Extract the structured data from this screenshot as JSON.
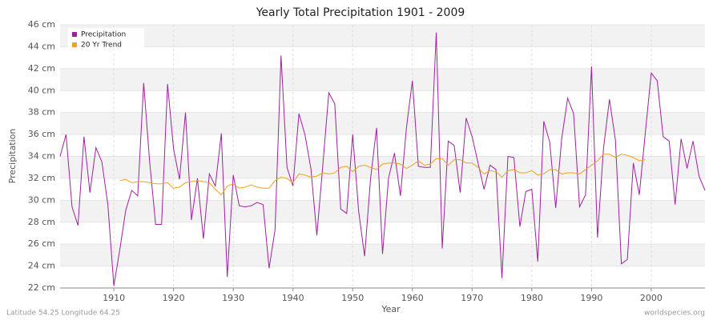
{
  "chart_data": {
    "type": "line",
    "title": "Yearly Total Precipitation 1901 - 2009",
    "x_label": "Year",
    "y_label": "Precipitation",
    "footer_left": "Latitude 54.25 Longitude 64.25",
    "footer_right": "worldspecies.org",
    "x": [
      1901,
      1902,
      1903,
      1904,
      1905,
      1906,
      1907,
      1908,
      1909,
      1910,
      1911,
      1912,
      1913,
      1914,
      1915,
      1916,
      1917,
      1918,
      1919,
      1920,
      1921,
      1922,
      1923,
      1924,
      1925,
      1926,
      1927,
      1928,
      1929,
      1930,
      1931,
      1932,
      1933,
      1934,
      1935,
      1936,
      1937,
      1938,
      1939,
      1940,
      1941,
      1942,
      1943,
      1944,
      1945,
      1946,
      1947,
      1948,
      1949,
      1950,
      1951,
      1952,
      1953,
      1954,
      1955,
      1956,
      1957,
      1958,
      1959,
      1960,
      1961,
      1962,
      1963,
      1964,
      1965,
      1966,
      1967,
      1968,
      1969,
      1970,
      1971,
      1972,
      1973,
      1974,
      1975,
      1976,
      1977,
      1978,
      1979,
      1980,
      1981,
      1982,
      1983,
      1984,
      1985,
      1986,
      1987,
      1988,
      1989,
      1990,
      1991,
      1992,
      1993,
      1994,
      1995,
      1996,
      1997,
      1998,
      1999,
      2000,
      2001,
      2002,
      2003,
      2004,
      2005,
      2006,
      2007,
      2008,
      2009
    ],
    "series": [
      {
        "name": "Precipitation",
        "color": "#a020a0",
        "values": [
          34.0,
          36.0,
          29.4,
          27.7,
          35.8,
          30.7,
          34.8,
          33.5,
          29.6,
          22.2,
          25.5,
          29.1,
          30.9,
          30.4,
          40.7,
          33.5,
          27.8,
          27.8,
          40.6,
          34.7,
          31.9,
          38.0,
          28.2,
          32.0,
          26.5,
          32.4,
          31.3,
          36.1,
          23.0,
          32.3,
          29.5,
          29.4,
          29.5,
          29.8,
          29.6,
          23.8,
          27.3,
          43.2,
          33.0,
          31.3,
          37.9,
          36.0,
          32.9,
          26.8,
          33.2,
          39.8,
          38.8,
          29.2,
          28.8,
          36.0,
          29.0,
          24.9,
          32.0,
          36.6,
          25.1,
          32.0,
          34.3,
          30.4,
          36.6,
          40.9,
          33.1,
          33.0,
          33.0,
          45.3,
          25.6,
          35.4,
          35.0,
          30.7,
          37.5,
          35.8,
          33.4,
          31.0,
          33.2,
          32.8,
          22.9,
          34.0,
          33.9,
          27.6,
          30.8,
          31.0,
          24.4,
          37.2,
          35.3,
          29.3,
          35.6,
          39.3,
          37.9,
          29.4,
          30.5,
          42.2,
          26.6,
          34.7,
          39.2,
          35.5,
          24.2,
          24.6,
          33.4,
          30.5,
          36.1,
          41.6,
          40.9,
          35.8,
          35.4,
          29.6,
          35.6,
          32.9,
          35.4,
          32.2,
          30.9
        ]
      },
      {
        "name": "20 Yr Trend",
        "color": "#f0a020",
        "values": [
          null,
          null,
          null,
          null,
          null,
          null,
          null,
          null,
          null,
          null,
          31.8,
          31.9,
          31.6,
          31.7,
          31.7,
          31.6,
          31.5,
          31.5,
          31.6,
          31.1,
          31.2,
          31.6,
          31.7,
          31.8,
          31.7,
          31.6,
          31.0,
          30.5,
          31.3,
          31.5,
          31.1,
          31.2,
          31.4,
          31.2,
          31.1,
          31.1,
          31.8,
          32.1,
          32.0,
          31.6,
          32.4,
          32.3,
          32.1,
          32.2,
          32.5,
          32.4,
          32.5,
          33.0,
          33.1,
          32.6,
          33.1,
          33.2,
          33.0,
          32.8,
          33.3,
          33.4,
          33.4,
          33.3,
          32.9,
          33.2,
          33.6,
          33.2,
          33.3,
          33.8,
          33.8,
          33.2,
          33.7,
          33.7,
          33.4,
          33.4,
          33.0,
          32.4,
          32.7,
          32.6,
          32.1,
          32.7,
          32.8,
          32.5,
          32.5,
          32.7,
          32.3,
          32.4,
          32.8,
          32.8,
          32.4,
          32.5,
          32.5,
          32.4,
          32.8,
          33.2,
          33.6,
          34.2,
          34.2,
          33.9,
          34.2,
          34.1,
          33.9,
          33.6,
          33.7,
          null,
          null,
          null,
          null,
          null,
          null,
          null,
          null,
          null,
          null
        ]
      }
    ],
    "xlim": [
      1901,
      2009
    ],
    "xticks": [
      1910,
      1920,
      1930,
      1940,
      1950,
      1960,
      1970,
      1980,
      1990,
      2000
    ],
    "ylim": [
      22,
      46
    ],
    "yticks": [
      {
        "value": 22,
        "label": "22 cm"
      },
      {
        "value": 24,
        "label": "24 cm"
      },
      {
        "value": 26,
        "label": "26 cm"
      },
      {
        "value": 28,
        "label": "28 cm"
      },
      {
        "value": 30,
        "label": "30 cm"
      },
      {
        "value": 32,
        "label": "32 cm"
      },
      {
        "value": 34,
        "label": "34 cm"
      },
      {
        "value": 36,
        "label": "36 cm"
      },
      {
        "value": 38,
        "label": "38 cm"
      },
      {
        "value": 40,
        "label": "40 cm"
      },
      {
        "value": 42,
        "label": "42 cm"
      },
      {
        "value": 44,
        "label": "44 cm"
      },
      {
        "value": 46,
        "label": "46 cm"
      }
    ],
    "grid": true,
    "legend": "top-left"
  }
}
